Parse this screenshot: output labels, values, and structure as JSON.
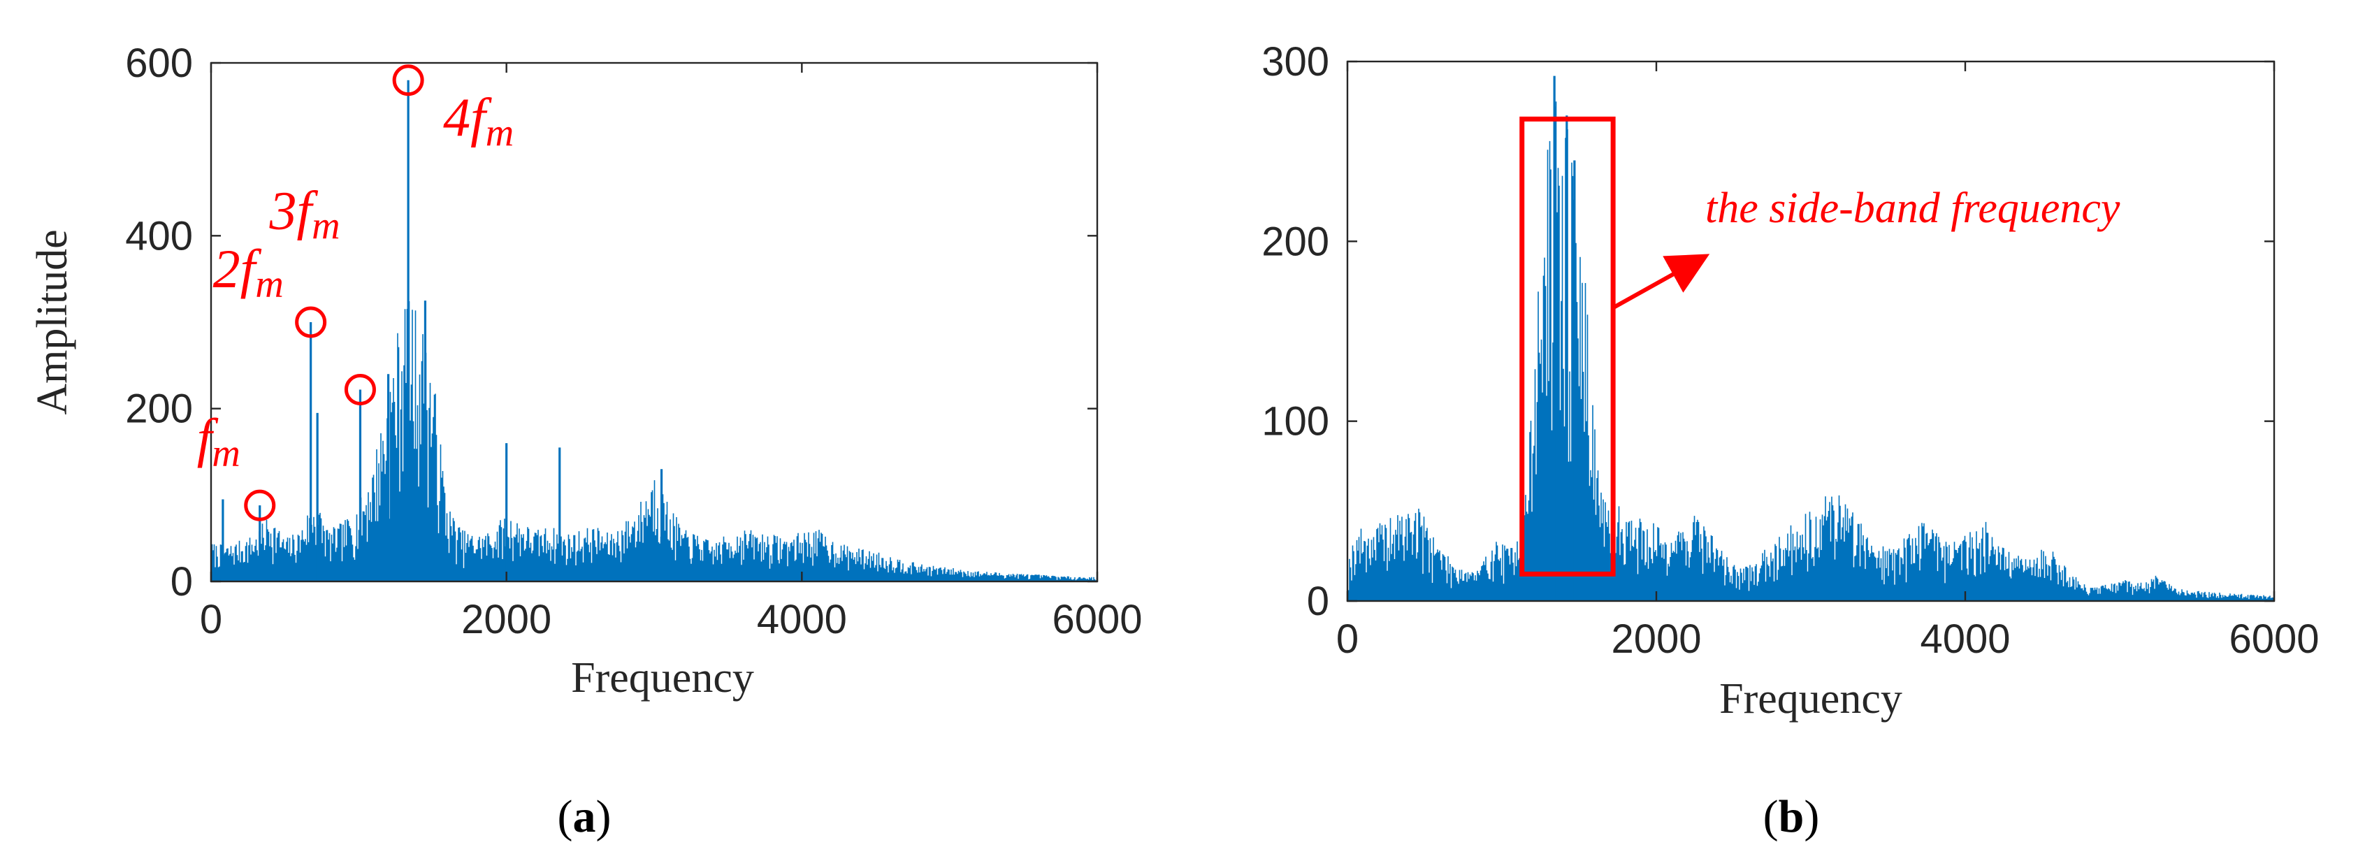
{
  "colors": {
    "series": "#0072BD",
    "annotation": "#FF0000",
    "axis": "#262626"
  },
  "chart_data": [
    {
      "type": "line",
      "panel_label": {
        "open": "(",
        "letter": "a",
        "close": ")"
      },
      "xlabel": "Frequency",
      "ylabel": "Amplitude",
      "xlim": [
        0,
        6000
      ],
      "ylim": [
        0,
        600
      ],
      "xticks": [
        "0",
        "2000",
        "4000",
        "6000"
      ],
      "yticks": [
        "0",
        "200",
        "400",
        "600"
      ],
      "grid": false,
      "peaks": [
        {
          "x": 330,
          "y": 88
        },
        {
          "x": 675,
          "y": 300
        },
        {
          "x": 1010,
          "y": 222
        },
        {
          "x": 1335,
          "y": 580
        }
      ],
      "annotations": [
        {
          "base": "f",
          "sub": "m",
          "x": 330,
          "y": 88
        },
        {
          "base": "2f",
          "sub": "m",
          "x": 675,
          "y": 300
        },
        {
          "base": "3f",
          "sub": "m",
          "x": 1010,
          "y": 222
        },
        {
          "base": "4f",
          "sub": "m",
          "x": 1335,
          "y": 580
        }
      ],
      "envelope": [
        [
          0,
          45
        ],
        [
          100,
          42
        ],
        [
          200,
          48
        ],
        [
          300,
          55
        ],
        [
          400,
          80
        ],
        [
          500,
          50
        ],
        [
          600,
          60
        ],
        [
          700,
          100
        ],
        [
          800,
          60
        ],
        [
          900,
          70
        ],
        [
          1000,
          90
        ],
        [
          1100,
          140
        ],
        [
          1200,
          230
        ],
        [
          1300,
          330
        ],
        [
          1400,
          320
        ],
        [
          1500,
          250
        ],
        [
          1600,
          90
        ],
        [
          1700,
          60
        ],
        [
          1800,
          55
        ],
        [
          1900,
          60
        ],
        [
          2000,
          80
        ],
        [
          2100,
          70
        ],
        [
          2200,
          60
        ],
        [
          2300,
          65
        ],
        [
          2400,
          55
        ],
        [
          2500,
          60
        ],
        [
          2600,
          65
        ],
        [
          2700,
          55
        ],
        [
          2800,
          70
        ],
        [
          2900,
          90
        ],
        [
          3000,
          130
        ],
        [
          3100,
          90
        ],
        [
          3200,
          60
        ],
        [
          3300,
          55
        ],
        [
          3400,
          45
        ],
        [
          3500,
          55
        ],
        [
          3600,
          62
        ],
        [
          3700,
          58
        ],
        [
          3800,
          55
        ],
        [
          3900,
          52
        ],
        [
          4000,
          58
        ],
        [
          4100,
          62
        ],
        [
          4200,
          50
        ],
        [
          4300,
          42
        ],
        [
          4400,
          38
        ],
        [
          4500,
          35
        ],
        [
          4600,
          30
        ],
        [
          4700,
          25
        ],
        [
          4800,
          20
        ],
        [
          4900,
          18
        ],
        [
          5000,
          16
        ],
        [
          5200,
          12
        ],
        [
          5400,
          10
        ],
        [
          5600,
          8
        ],
        [
          5800,
          6
        ],
        [
          6000,
          5
        ]
      ],
      "spikes": [
        [
          80,
          95
        ],
        [
          330,
          88
        ],
        [
          675,
          300
        ],
        [
          720,
          195
        ],
        [
          1010,
          222
        ],
        [
          1200,
          240
        ],
        [
          1335,
          580
        ],
        [
          1450,
          325
        ],
        [
          2000,
          160
        ],
        [
          2360,
          155
        ],
        [
          3050,
          130
        ]
      ]
    },
    {
      "type": "line",
      "panel_label": {
        "open": "(",
        "letter": "b",
        "close": ")"
      },
      "xlabel": "Frequency",
      "ylabel": "",
      "xlim": [
        0,
        6000
      ],
      "ylim": [
        0,
        300
      ],
      "xticks": [
        "0",
        "2000",
        "4000",
        "6000"
      ],
      "yticks": [
        "0",
        "100",
        "200",
        "300"
      ],
      "grid": false,
      "annotation_text": "the side-band frequency",
      "highlight_box": {
        "x0": 1130,
        "x1": 1720,
        "y0": 15,
        "y1": 268
      },
      "envelope": [
        [
          0,
          20
        ],
        [
          50,
          40
        ],
        [
          150,
          42
        ],
        [
          250,
          45
        ],
        [
          350,
          50
        ],
        [
          450,
          55
        ],
        [
          550,
          40
        ],
        [
          650,
          25
        ],
        [
          750,
          20
        ],
        [
          850,
          18
        ],
        [
          950,
          35
        ],
        [
          1050,
          30
        ],
        [
          1150,
          60
        ],
        [
          1200,
          120
        ],
        [
          1250,
          200
        ],
        [
          1300,
          260
        ],
        [
          1340,
          290
        ],
        [
          1380,
          250
        ],
        [
          1420,
          270
        ],
        [
          1470,
          240
        ],
        [
          1520,
          200
        ],
        [
          1570,
          150
        ],
        [
          1620,
          80
        ],
        [
          1680,
          50
        ],
        [
          1750,
          55
        ],
        [
          1850,
          48
        ],
        [
          1950,
          45
        ],
        [
          2050,
          40
        ],
        [
          2150,
          42
        ],
        [
          2250,
          50
        ],
        [
          2350,
          40
        ],
        [
          2450,
          25
        ],
        [
          2550,
          18
        ],
        [
          2650,
          22
        ],
        [
          2750,
          35
        ],
        [
          2850,
          42
        ],
        [
          2950,
          48
        ],
        [
          3050,
          55
        ],
        [
          3150,
          65
        ],
        [
          3250,
          55
        ],
        [
          3350,
          42
        ],
        [
          3450,
          32
        ],
        [
          3550,
          30
        ],
        [
          3650,
          40
        ],
        [
          3750,
          50
        ],
        [
          3850,
          38
        ],
        [
          3950,
          35
        ],
        [
          4050,
          42
        ],
        [
          4150,
          45
        ],
        [
          4250,
          30
        ],
        [
          4350,
          25
        ],
        [
          4450,
          28
        ],
        [
          4550,
          30
        ],
        [
          4650,
          20
        ],
        [
          4750,
          10
        ],
        [
          4850,
          8
        ],
        [
          4950,
          10
        ],
        [
          5050,
          12
        ],
        [
          5150,
          10
        ],
        [
          5250,
          15
        ],
        [
          5350,
          8
        ],
        [
          5450,
          6
        ],
        [
          5600,
          5
        ],
        [
          5800,
          4
        ],
        [
          6000,
          3
        ]
      ],
      "spikes": [
        [
          1340,
          292
        ],
        [
          1420,
          270
        ],
        [
          1470,
          245
        ]
      ]
    }
  ]
}
